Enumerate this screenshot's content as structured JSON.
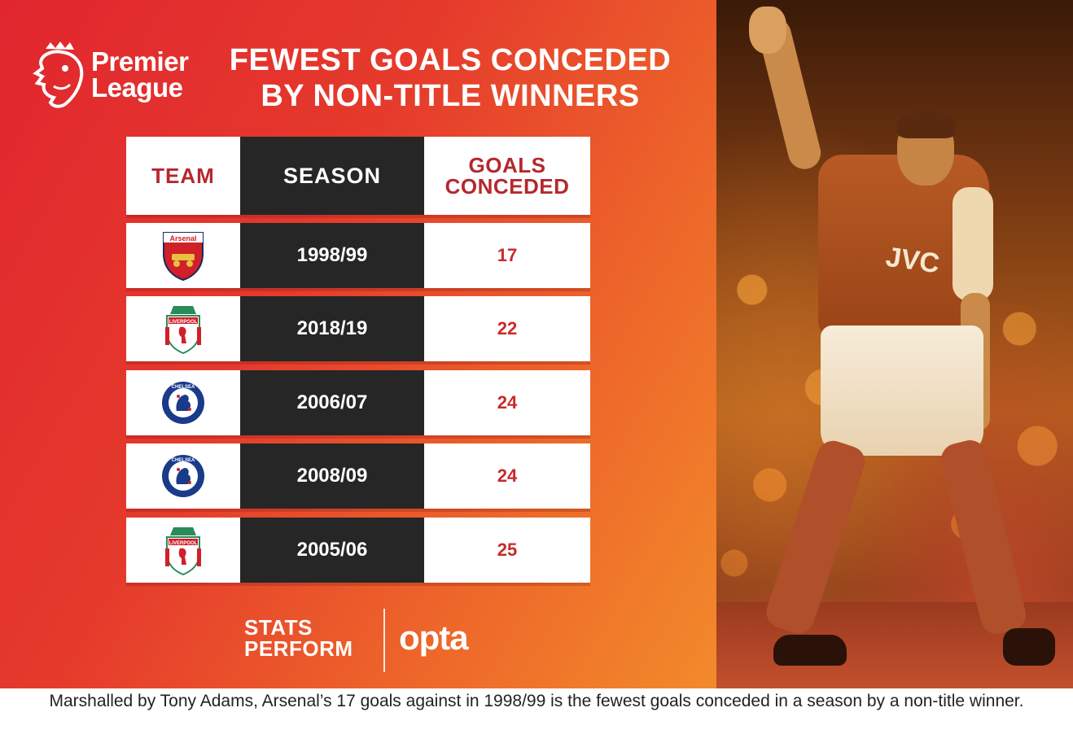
{
  "header": {
    "brand_line1": "Premier",
    "brand_line2": "League",
    "title_line1": "FEWEST GOALS CONCEDED",
    "title_line2": "BY NON-TITLE WINNERS"
  },
  "table": {
    "headers": {
      "team": "TEAM",
      "season": "SEASON",
      "goals_line1": "GOALS",
      "goals_line2": "CONCEDED"
    },
    "rows": [
      {
        "team_crest": "arsenal-crest",
        "crest_text": "Arsenal",
        "season": "1998/99",
        "goals": "17"
      },
      {
        "team_crest": "liverpool-crest",
        "crest_text": "LIVERPOOL",
        "season": "2018/19",
        "goals": "22"
      },
      {
        "team_crest": "chelsea-crest",
        "crest_text": "CHELSEA",
        "season": "2006/07",
        "goals": "24"
      },
      {
        "team_crest": "chelsea-crest",
        "crest_text": "CHELSEA",
        "season": "2008/09",
        "goals": "24"
      },
      {
        "team_crest": "liverpool-crest",
        "crest_text": "LIVERPOOL",
        "season": "2005/06",
        "goals": "25"
      }
    ]
  },
  "footer": {
    "stats_line1": "STATS",
    "stats_line2": "PERFORM",
    "opta": "opta"
  },
  "photo": {
    "shirt_sponsor": "JVC"
  },
  "caption": "Marshalled by Tony Adams, Arsenal’s 17 goals against in 1998/99 is the fewest goals conceded in a season by a non-title winner.",
  "colors": {
    "red": "#e1262f",
    "orange": "#f28a2b",
    "dark": "#262626",
    "accent_text": "#c92a2a"
  }
}
